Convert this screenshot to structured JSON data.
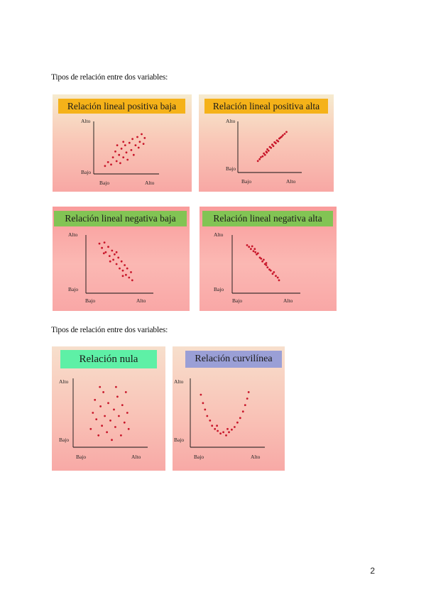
{
  "intro_1": "Tipos de relación entre dos variables:",
  "intro_2": "Tipos de relación entre dos variables:",
  "page_number": "2",
  "axis_labels": {
    "high": "Alto",
    "low": "Bajo"
  },
  "colors": {
    "orange": "#f5b219",
    "green": "#82c454",
    "mint": "#5ef0a6",
    "lavender": "#9a9fd6",
    "dot": "#c8162a"
  },
  "panels": [
    {
      "id": "pos-baja",
      "title": "Relación lineal positiva baja",
      "title_color": "#f5b219",
      "chart_data": {
        "type": "scatter",
        "title": "Relación lineal positiva baja",
        "xlabel_low": "Bajo",
        "xlabel_high": "Alto",
        "ylabel_low": "Bajo",
        "ylabel_high": "Alto",
        "points": [
          [
            0.15,
            0.12
          ],
          [
            0.2,
            0.2
          ],
          [
            0.25,
            0.15
          ],
          [
            0.28,
            0.3
          ],
          [
            0.32,
            0.42
          ],
          [
            0.34,
            0.22
          ],
          [
            0.38,
            0.35
          ],
          [
            0.4,
            0.18
          ],
          [
            0.42,
            0.48
          ],
          [
            0.45,
            0.3
          ],
          [
            0.48,
            0.55
          ],
          [
            0.5,
            0.4
          ],
          [
            0.52,
            0.25
          ],
          [
            0.55,
            0.6
          ],
          [
            0.58,
            0.45
          ],
          [
            0.6,
            0.68
          ],
          [
            0.62,
            0.35
          ],
          [
            0.65,
            0.55
          ],
          [
            0.68,
            0.72
          ],
          [
            0.7,
            0.5
          ],
          [
            0.72,
            0.62
          ],
          [
            0.75,
            0.78
          ],
          [
            0.78,
            0.58
          ],
          [
            0.8,
            0.7
          ],
          [
            0.45,
            0.62
          ],
          [
            0.35,
            0.55
          ]
        ]
      }
    },
    {
      "id": "pos-alta",
      "title": "Relación lineal positiva alta",
      "title_color": "#f5b219",
      "chart_data": {
        "type": "scatter",
        "title": "Relación lineal positiva alta",
        "xlabel_low": "Bajo",
        "xlabel_high": "Alto",
        "ylabel_low": "Bajo",
        "ylabel_high": "Alto",
        "points": [
          [
            0.3,
            0.2
          ],
          [
            0.33,
            0.24
          ],
          [
            0.35,
            0.28
          ],
          [
            0.38,
            0.3
          ],
          [
            0.4,
            0.36
          ],
          [
            0.42,
            0.33
          ],
          [
            0.44,
            0.4
          ],
          [
            0.46,
            0.45
          ],
          [
            0.48,
            0.42
          ],
          [
            0.5,
            0.5
          ],
          [
            0.52,
            0.48
          ],
          [
            0.54,
            0.55
          ],
          [
            0.56,
            0.52
          ],
          [
            0.58,
            0.6
          ],
          [
            0.6,
            0.58
          ],
          [
            0.62,
            0.64
          ],
          [
            0.64,
            0.62
          ],
          [
            0.66,
            0.68
          ],
          [
            0.68,
            0.7
          ],
          [
            0.7,
            0.72
          ],
          [
            0.72,
            0.75
          ],
          [
            0.75,
            0.78
          ],
          [
            0.78,
            0.82
          ],
          [
            0.45,
            0.38
          ]
        ]
      }
    },
    {
      "id": "neg-baja",
      "title": "Relación lineal  negativa baja",
      "title_color": "#82c454",
      "chart_data": {
        "type": "scatter",
        "title": "Relación lineal  negativa baja",
        "xlabel_low": "Bajo",
        "xlabel_high": "Alto",
        "ylabel_low": "Bajo",
        "ylabel_high": "Alto",
        "points": [
          [
            0.18,
            0.88
          ],
          [
            0.22,
            0.8
          ],
          [
            0.26,
            0.9
          ],
          [
            0.28,
            0.72
          ],
          [
            0.32,
            0.82
          ],
          [
            0.34,
            0.65
          ],
          [
            0.38,
            0.75
          ],
          [
            0.4,
            0.58
          ],
          [
            0.42,
            0.68
          ],
          [
            0.45,
            0.5
          ],
          [
            0.48,
            0.62
          ],
          [
            0.5,
            0.42
          ],
          [
            0.53,
            0.55
          ],
          [
            0.55,
            0.38
          ],
          [
            0.58,
            0.48
          ],
          [
            0.6,
            0.3
          ],
          [
            0.62,
            0.42
          ],
          [
            0.65,
            0.25
          ],
          [
            0.68,
            0.35
          ],
          [
            0.7,
            0.2
          ],
          [
            0.25,
            0.7
          ],
          [
            0.35,
            0.55
          ],
          [
            0.45,
            0.72
          ],
          [
            0.55,
            0.28
          ]
        ]
      }
    },
    {
      "id": "neg-alta",
      "title": "Relación lineal  negativa alta",
      "title_color": "#82c454",
      "chart_data": {
        "type": "scatter",
        "title": "Relación lineal  negativa alta",
        "xlabel_low": "Bajo",
        "xlabel_high": "Alto",
        "ylabel_low": "Bajo",
        "ylabel_high": "Alto",
        "points": [
          [
            0.2,
            0.85
          ],
          [
            0.23,
            0.82
          ],
          [
            0.26,
            0.78
          ],
          [
            0.28,
            0.83
          ],
          [
            0.3,
            0.74
          ],
          [
            0.33,
            0.72
          ],
          [
            0.35,
            0.68
          ],
          [
            0.37,
            0.7
          ],
          [
            0.4,
            0.62
          ],
          [
            0.42,
            0.6
          ],
          [
            0.44,
            0.55
          ],
          [
            0.46,
            0.58
          ],
          [
            0.48,
            0.5
          ],
          [
            0.5,
            0.48
          ],
          [
            0.52,
            0.44
          ],
          [
            0.55,
            0.4
          ],
          [
            0.57,
            0.38
          ],
          [
            0.6,
            0.32
          ],
          [
            0.62,
            0.35
          ],
          [
            0.65,
            0.28
          ],
          [
            0.68,
            0.25
          ],
          [
            0.7,
            0.2
          ],
          [
            0.32,
            0.78
          ],
          [
            0.5,
            0.52
          ]
        ]
      }
    },
    {
      "id": "nula",
      "title": "Relación nula",
      "title_color": "#5ef0a6",
      "chart_data": {
        "type": "scatter",
        "title": "Relación nula",
        "xlabel_low": "Bajo",
        "xlabel_high": "Alto",
        "ylabel_low": "Bajo",
        "ylabel_high": "Alto",
        "points": [
          [
            0.22,
            0.25
          ],
          [
            0.25,
            0.5
          ],
          [
            0.28,
            0.7
          ],
          [
            0.3,
            0.4
          ],
          [
            0.33,
            0.15
          ],
          [
            0.36,
            0.6
          ],
          [
            0.38,
            0.3
          ],
          [
            0.4,
            0.82
          ],
          [
            0.42,
            0.45
          ],
          [
            0.45,
            0.2
          ],
          [
            0.47,
            0.65
          ],
          [
            0.5,
            0.38
          ],
          [
            0.52,
            0.08
          ],
          [
            0.55,
            0.55
          ],
          [
            0.57,
            0.28
          ],
          [
            0.6,
            0.75
          ],
          [
            0.62,
            0.45
          ],
          [
            0.65,
            0.15
          ],
          [
            0.67,
            0.62
          ],
          [
            0.7,
            0.35
          ],
          [
            0.72,
            0.82
          ],
          [
            0.74,
            0.5
          ],
          [
            0.76,
            0.25
          ],
          [
            0.35,
            0.9
          ],
          [
            0.58,
            0.9
          ]
        ]
      }
    },
    {
      "id": "curvilinea",
      "title": "Relación curvilínea",
      "title_color": "#9a9fd6",
      "chart_data": {
        "type": "scatter",
        "title": "Relación curvilínea",
        "xlabel_low": "Bajo",
        "xlabel_high": "Alto",
        "ylabel_low": "Bajo",
        "ylabel_high": "Alto",
        "points": [
          [
            0.12,
            0.78
          ],
          [
            0.15,
            0.65
          ],
          [
            0.18,
            0.55
          ],
          [
            0.21,
            0.45
          ],
          [
            0.25,
            0.38
          ],
          [
            0.28,
            0.3
          ],
          [
            0.32,
            0.25
          ],
          [
            0.36,
            0.22
          ],
          [
            0.4,
            0.18
          ],
          [
            0.44,
            0.2
          ],
          [
            0.48,
            0.15
          ],
          [
            0.52,
            0.2
          ],
          [
            0.56,
            0.24
          ],
          [
            0.6,
            0.28
          ],
          [
            0.64,
            0.35
          ],
          [
            0.68,
            0.42
          ],
          [
            0.72,
            0.52
          ],
          [
            0.75,
            0.62
          ],
          [
            0.78,
            0.72
          ],
          [
            0.8,
            0.82
          ],
          [
            0.35,
            0.3
          ],
          [
            0.5,
            0.25
          ]
        ]
      }
    }
  ]
}
